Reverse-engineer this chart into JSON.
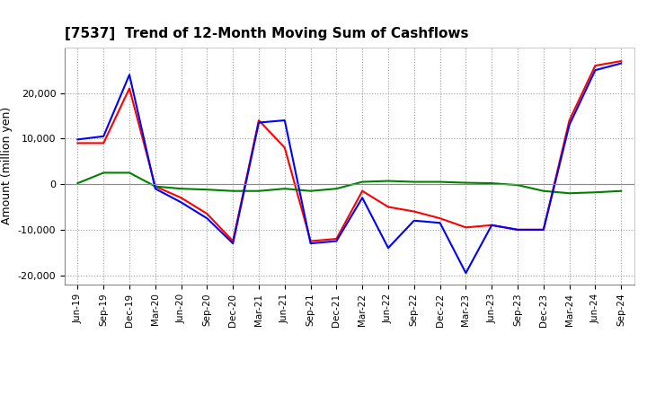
{
  "title": "[7537]  Trend of 12-Month Moving Sum of Cashflows",
  "ylabel": "Amount (million yen)",
  "ylim": [
    -22000,
    30000
  ],
  "yticks": [
    -20000,
    -10000,
    0,
    10000,
    20000
  ],
  "background_color": "#ffffff",
  "grid_color": "#999999",
  "x_labels": [
    "Jun-19",
    "Sep-19",
    "Dec-19",
    "Mar-20",
    "Jun-20",
    "Sep-20",
    "Dec-20",
    "Mar-21",
    "Jun-21",
    "Sep-21",
    "Dec-21",
    "Mar-22",
    "Jun-22",
    "Sep-22",
    "Dec-22",
    "Mar-23",
    "Jun-23",
    "Sep-23",
    "Dec-23",
    "Mar-24",
    "Jun-24",
    "Sep-24"
  ],
  "operating": [
    9000,
    9000,
    21000,
    -500,
    -3000,
    -6500,
    -12500,
    14000,
    8000,
    -12500,
    -12000,
    -1500,
    -5000,
    -6000,
    -7500,
    -9500,
    -9000,
    -10000,
    -10000,
    14000,
    26000,
    27000
  ],
  "investing": [
    200,
    2500,
    2500,
    -500,
    -1000,
    -1200,
    -1500,
    -1500,
    -1000,
    -1500,
    -1000,
    500,
    700,
    500,
    500,
    300,
    200,
    -200,
    -1500,
    -2000,
    -1800,
    -1500
  ],
  "free": [
    9800,
    10500,
    24000,
    -1000,
    -4000,
    -7500,
    -13000,
    13500,
    14000,
    -13000,
    -12500,
    -3000,
    -14000,
    -8000,
    -8500,
    -19500,
    -9000,
    -10000,
    -10000,
    13000,
    25000,
    26500
  ],
  "op_color": "#ff0000",
  "inv_color": "#008000",
  "free_color": "#0000ff",
  "linewidth": 1.5
}
